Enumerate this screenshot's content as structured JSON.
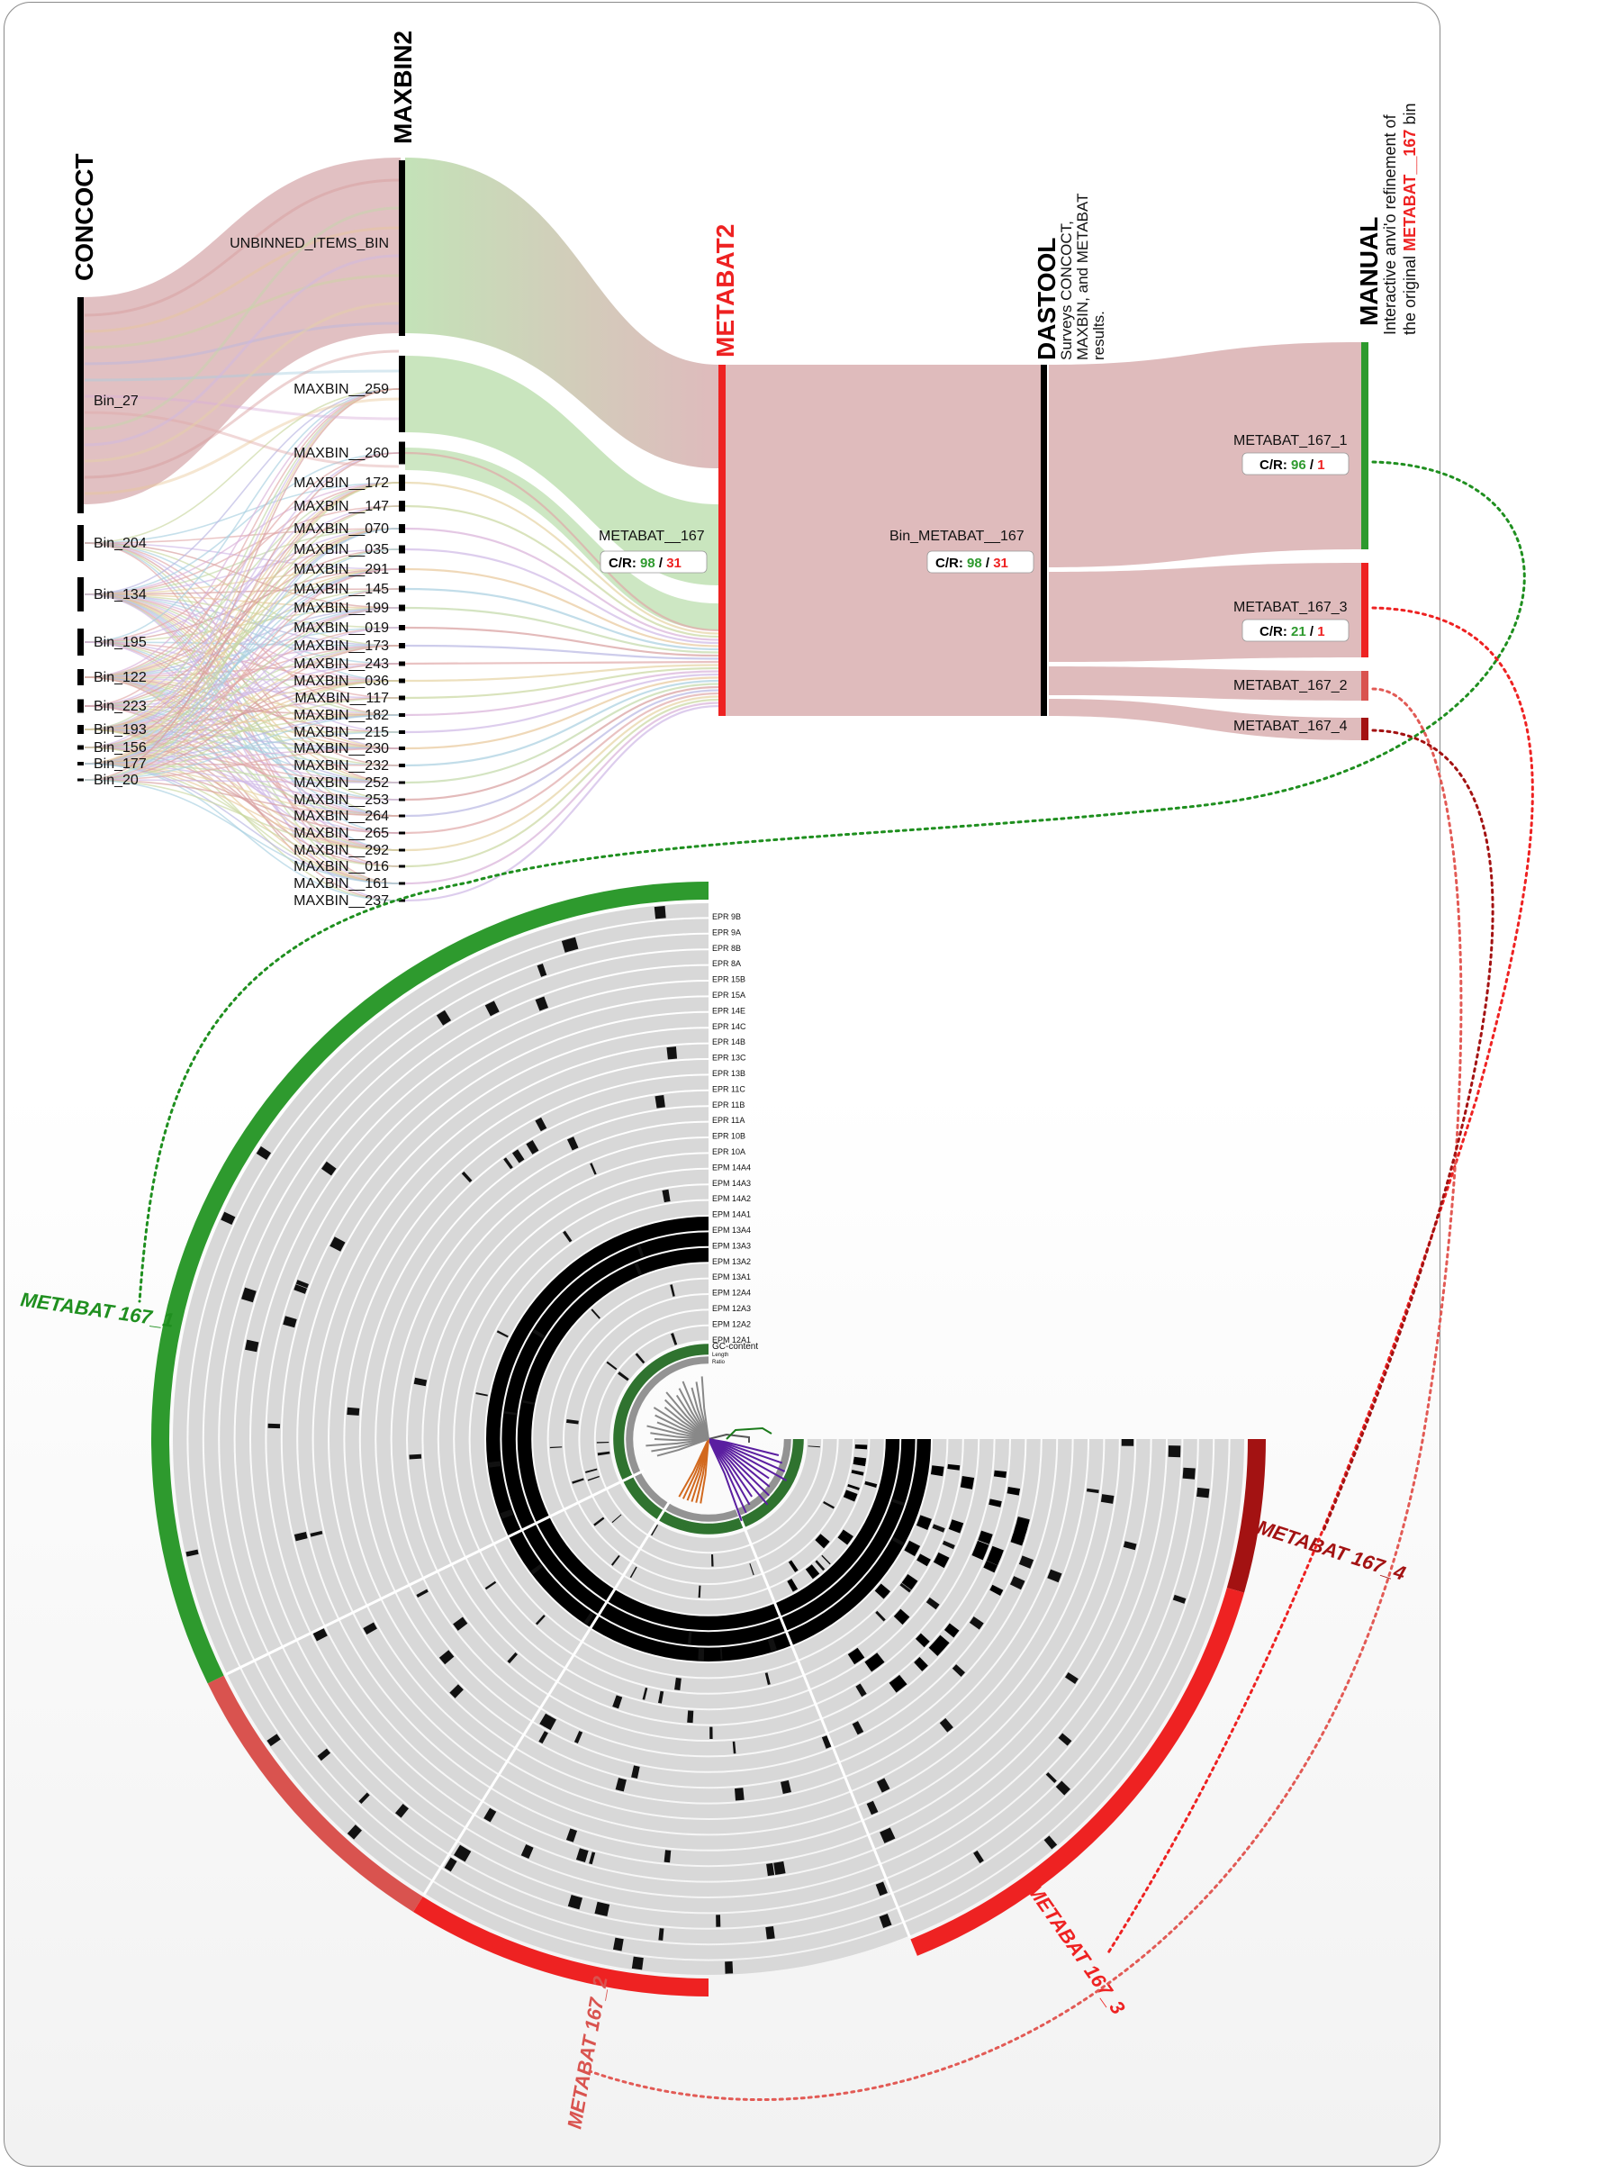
{
  "columns": {
    "concoct": "CONCOCT",
    "maxbin2": "MAXBIN2",
    "metabat2": "METABAT2",
    "dastool": "DASTOOL",
    "dastool_desc": [
      "Surveys CONCOCT,",
      "MAXBIN, and METABAT",
      "results."
    ],
    "manual": "MANUAL",
    "manual_desc_1": "Interactive anvi'o refinement of",
    "manual_desc_2_prefix": "the original ",
    "manual_desc_2_highlight": "METABAT__167",
    "manual_desc_2_suffix": " bin"
  },
  "concoct_bins": [
    "Bin_27",
    "Bin_204",
    "Bin_134",
    "Bin_195",
    "Bin_122",
    "Bin_223",
    "Bin_193",
    "Bin_156",
    "Bin_177",
    "Bin_20"
  ],
  "maxbin_bins": [
    "UNBINNED_ITEMS_BIN",
    "MAXBIN__259",
    "MAXBIN__260",
    "MAXBIN__172",
    "MAXBIN__147",
    "MAXBIN__070",
    "MAXBIN__035",
    "MAXBIN__291",
    "MAXBIN__145",
    "MAXBIN__199",
    "MAXBIN__019",
    "MAXBIN__173",
    "MAXBIN__243",
    "MAXBIN__036",
    "MAXBIN__117",
    "MAXBIN__182",
    "MAXBIN__215",
    "MAXBIN__230",
    "MAXBIN__232",
    "MAXBIN__252",
    "MAXBIN__253",
    "MAXBIN__264",
    "MAXBIN__265",
    "MAXBIN__292",
    "MAXBIN__016",
    "MAXBIN__161",
    "MAXBIN__237"
  ],
  "metabat_bin": {
    "name": "METABAT__167",
    "cr_label": "C/R: ",
    "completion": "98",
    "sep": " / ",
    "redundancy": "31"
  },
  "dastool_bin": {
    "name": "Bin_METABAT__167",
    "cr_label": "C/R: ",
    "completion": "98",
    "sep": " / ",
    "redundancy": "31"
  },
  "manual_bins": [
    {
      "name": "METABAT_167_1",
      "cr_label": "C/R: ",
      "completion": "96",
      "sep": " / ",
      "redundancy": "1",
      "color": "#2e9a2e"
    },
    {
      "name": "METABAT_167_3",
      "cr_label": "C/R: ",
      "completion": "21",
      "sep": " / ",
      "redundancy": "1",
      "color": "#ee2222"
    },
    {
      "name": "METABAT_167_2",
      "color": "#d9534f"
    },
    {
      "name": "METABAT_167_4",
      "color": "#a31212"
    }
  ],
  "circle_layers": [
    "EPR 9B",
    "EPR 9A",
    "EPR 8B",
    "EPR 8A",
    "EPR 15B",
    "EPR 15A",
    "EPR 14E",
    "EPR 14C",
    "EPR 14B",
    "EPR 13C",
    "EPR 13B",
    "EPR 11C",
    "EPR 11B",
    "EPR 11A",
    "EPR 10B",
    "EPR 10A",
    "EPM 14A4",
    "EPM 14A3",
    "EPM 14A2",
    "EPM 14A1",
    "EPM 13A4",
    "EPM 13A3",
    "EPM 13A2",
    "EPM 13A1",
    "EPM 12A4",
    "EPM 12A3",
    "EPM 12A2",
    "EPM 12A1",
    "GC-content",
    "Length",
    "Ratio"
  ],
  "circle_bin_labels": {
    "bin_1": "METABAT 167_1",
    "bin_2": "METABAT 167_2",
    "bin_3": "METABAT 167_3",
    "bin_4": "METABAT 167_4"
  },
  "colors": {
    "green": "#2e9a2e",
    "red": "#ee2222",
    "light_red": "#d9534f",
    "dark_red": "#a31212",
    "flow_pink": "#c98d90",
    "flow_green": "#9ccf88",
    "tree_purple": "#5a1ea0",
    "tree_orange": "#d2691e",
    "tree_green": "#1a7a1a"
  }
}
